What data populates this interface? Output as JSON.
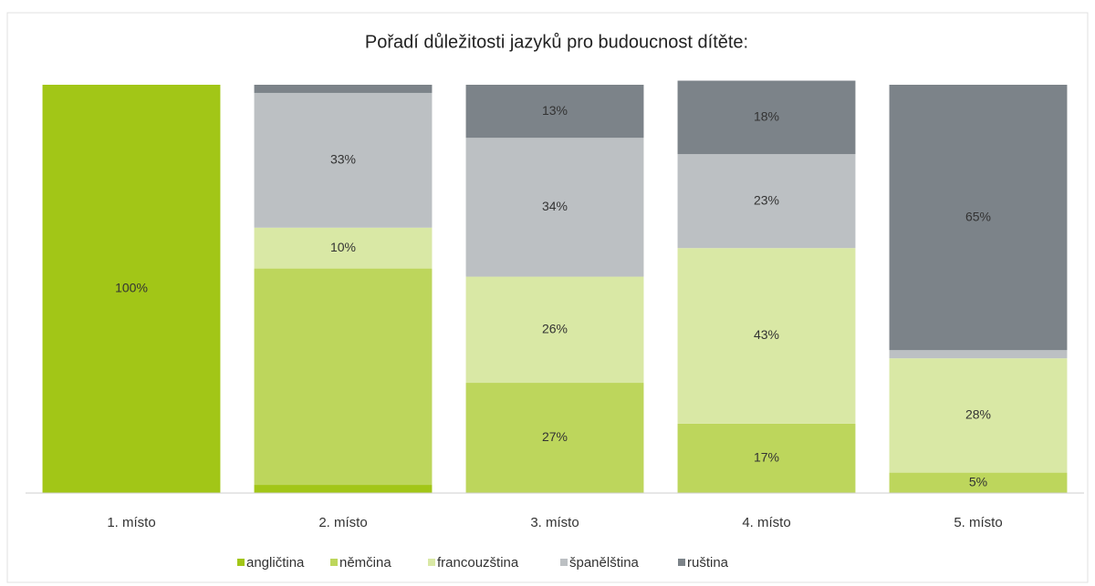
{
  "chart_data": {
    "type": "bar",
    "stacked": true,
    "title": "Pořadí důležitosti jazyků pro budoucnost dítěte:",
    "categories": [
      "1. místo",
      "2. místo",
      "3. místo",
      "4. místo",
      "5. místo"
    ],
    "ylim": [
      0,
      100
    ],
    "legend": "bottom",
    "series": [
      {
        "name": "angličtina",
        "color": "#a2c617",
        "values": [
          100,
          2,
          0,
          0,
          0
        ],
        "value_labels": [
          "100%",
          null,
          null,
          null,
          null
        ]
      },
      {
        "name": "němčina",
        "color": "#bdd65c",
        "values": [
          0,
          53,
          27,
          17,
          5
        ],
        "value_labels": [
          null,
          null,
          "27%",
          "17%",
          "5%"
        ]
      },
      {
        "name": "francouzština",
        "color": "#d9e8a5",
        "values": [
          0,
          10,
          26,
          43,
          28
        ],
        "value_labels": [
          null,
          "10%",
          "26%",
          "43%",
          "28%"
        ]
      },
      {
        "name": "španělština",
        "color": "#bcc0c3",
        "values": [
          0,
          33,
          34,
          23,
          2
        ],
        "value_labels": [
          null,
          "33%",
          "34%",
          "23%",
          null
        ]
      },
      {
        "name": "ruština",
        "color": "#7c8389",
        "values": [
          0,
          2,
          13,
          18,
          65
        ],
        "value_labels": [
          null,
          null,
          "13%",
          "18%",
          "65%"
        ]
      }
    ]
  }
}
